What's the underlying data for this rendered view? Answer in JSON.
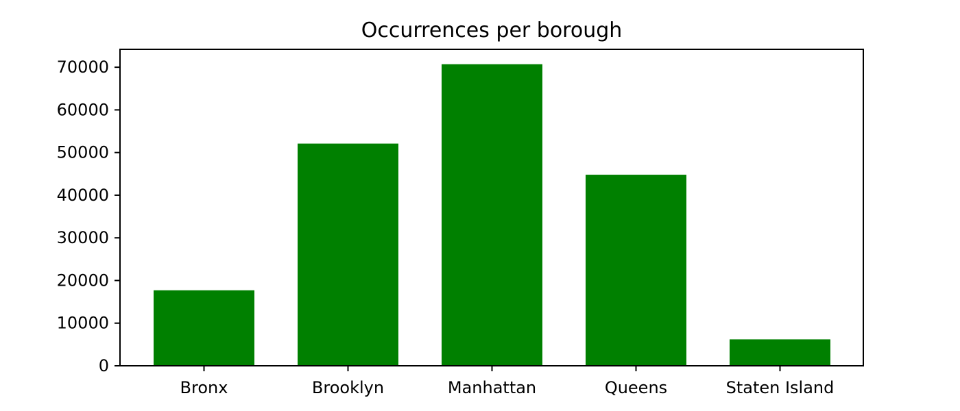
{
  "chart_data": {
    "type": "bar",
    "title": "Occurrences per borough",
    "xlabel": "",
    "ylabel": "",
    "categories": [
      "Bronx",
      "Brooklyn",
      "Manhattan",
      "Queens",
      "Staten Island"
    ],
    "values": [
      17700,
      52100,
      70700,
      44800,
      6200
    ],
    "ylim": [
      0,
      74200
    ],
    "yticks": [
      0,
      10000,
      20000,
      30000,
      40000,
      50000,
      60000,
      70000
    ],
    "ytick_labels": [
      "0",
      "10000",
      "20000",
      "30000",
      "40000",
      "50000",
      "60000",
      "70000"
    ],
    "bar_color": "#008000",
    "grid": false
  }
}
